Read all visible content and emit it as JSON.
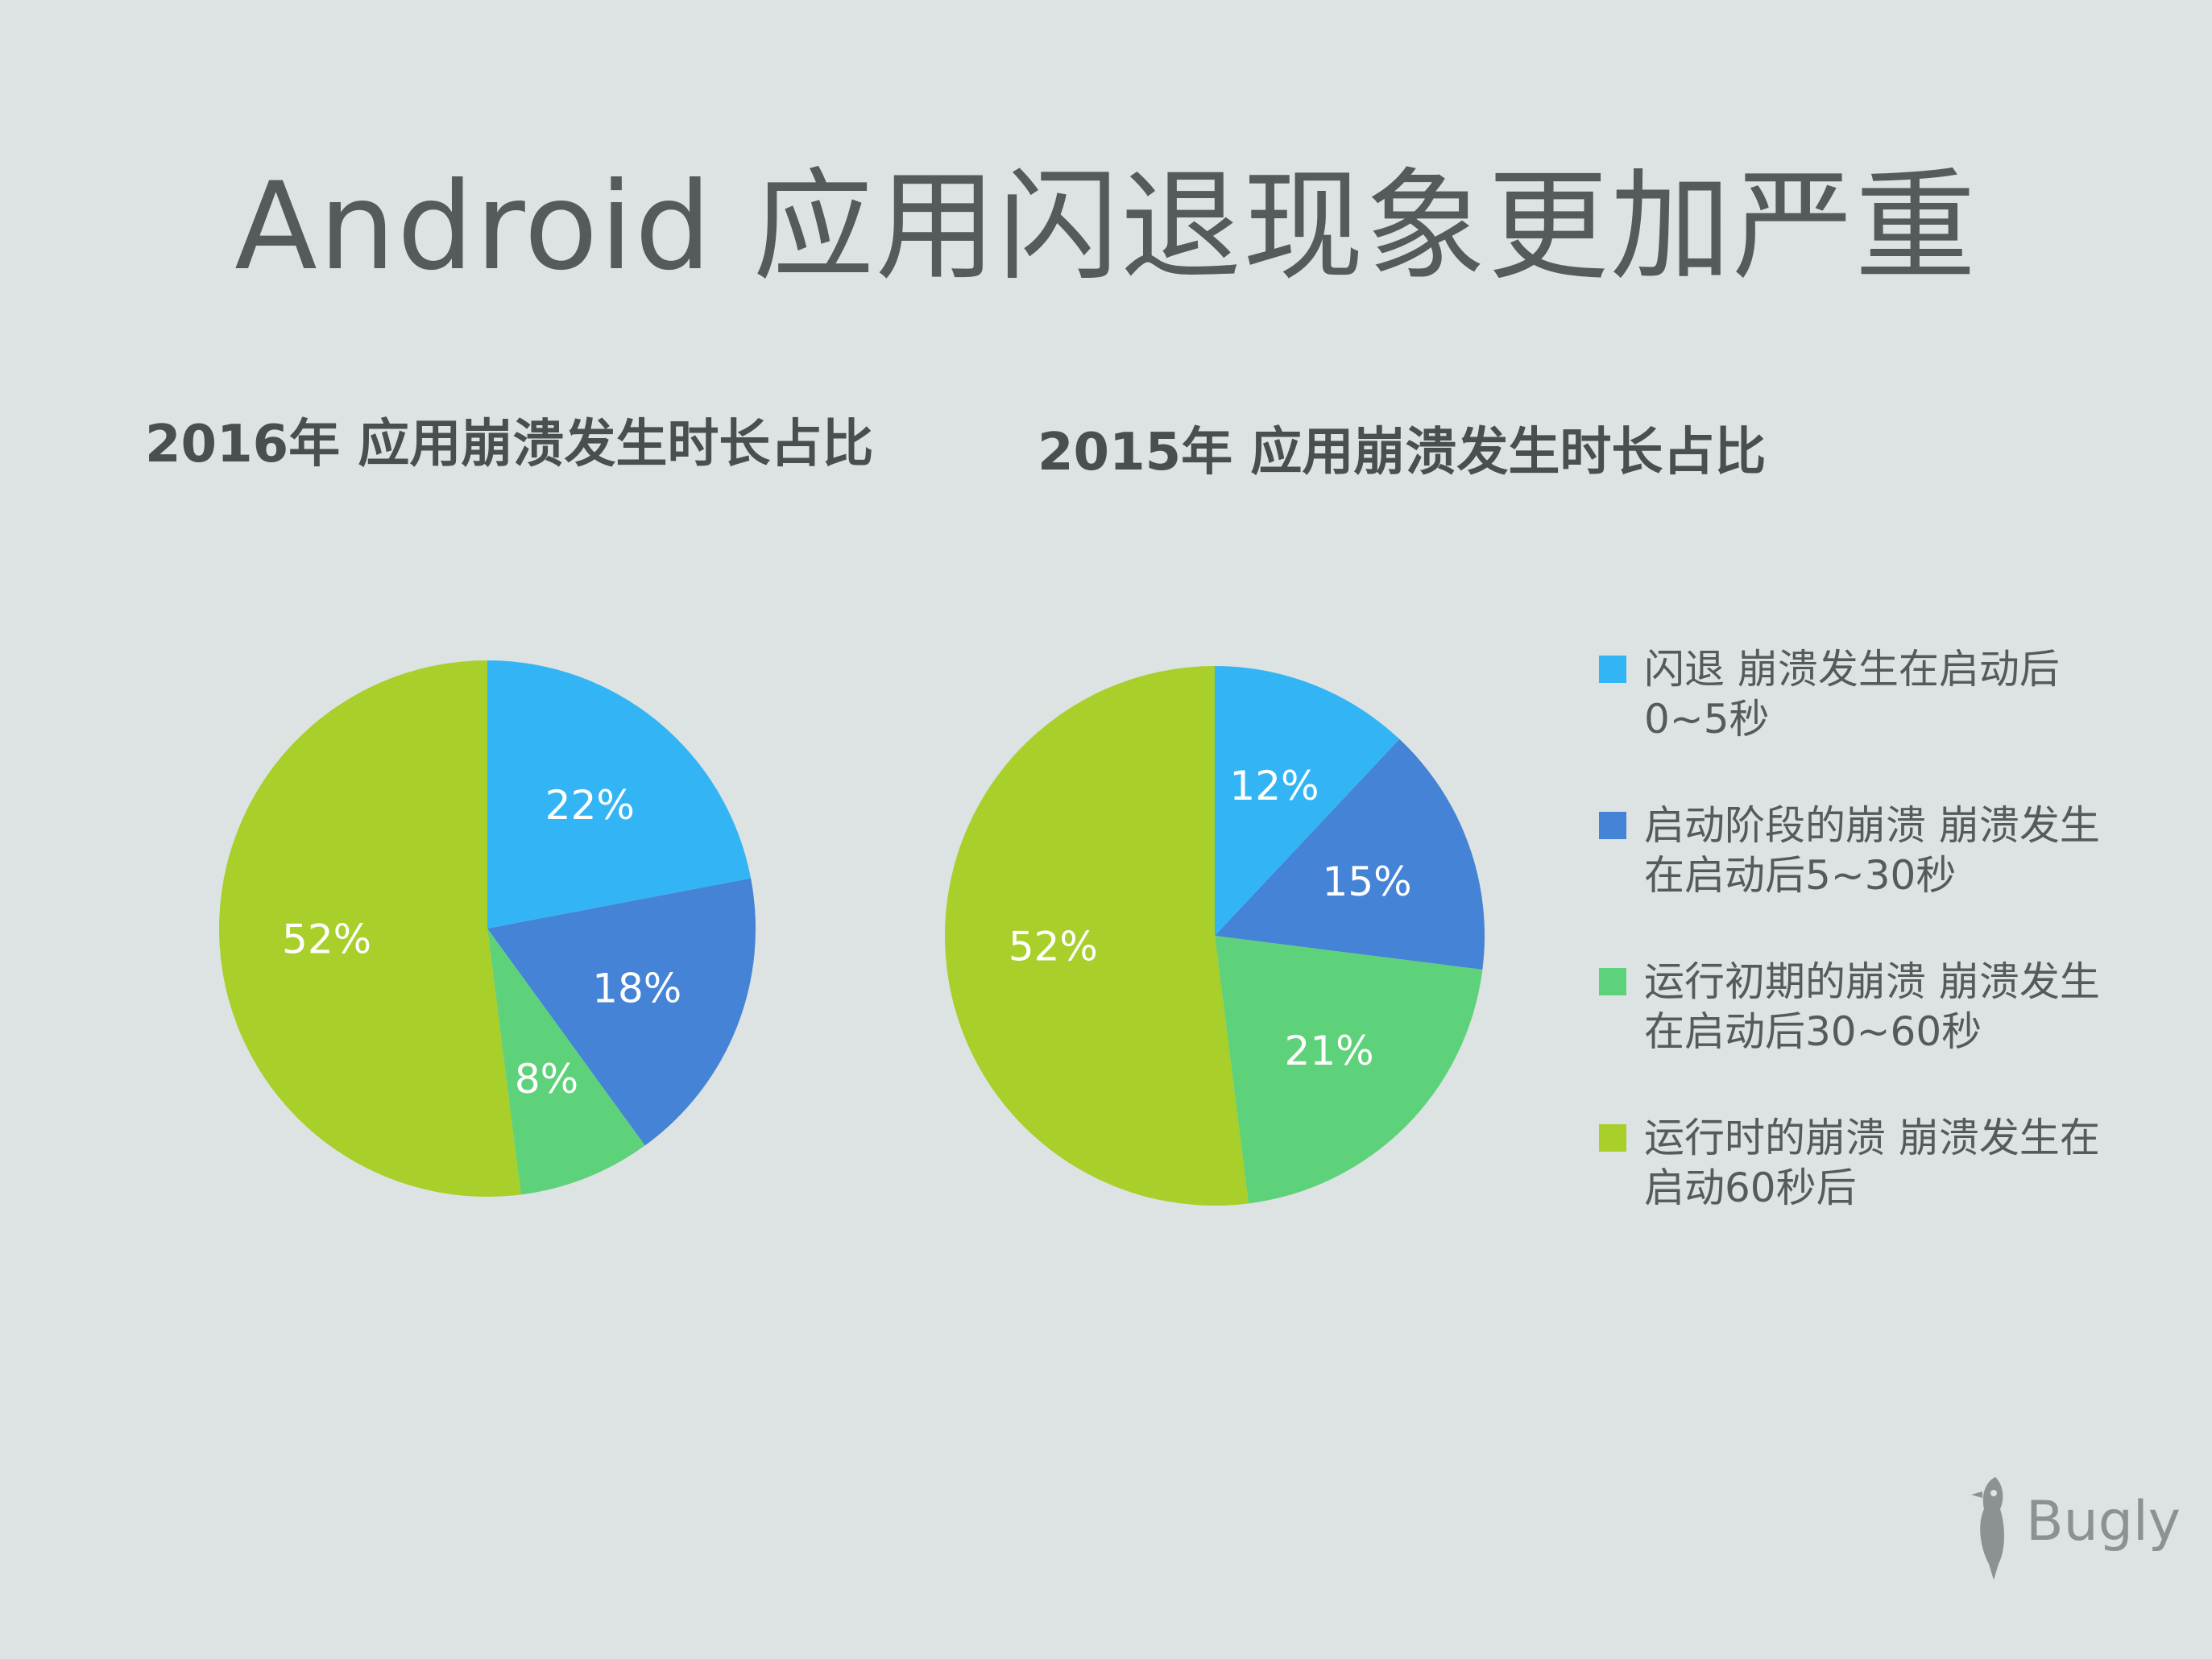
{
  "title": "Android 应用闪退现象更加严重",
  "legend": [
    {
      "label": "闪退 崩溃发生在启动后0~5秒",
      "color": "#33b5f5"
    },
    {
      "label": "启动阶段的崩溃 崩溃发生在启动后5~30秒",
      "color": "#4483d6"
    },
    {
      "label": "运行初期的崩溃 崩溃发生在启动后30~60秒",
      "color": "#5ed27a"
    },
    {
      "label": "运行时的崩溃 崩溃发生在启动60秒后",
      "color": "#a8cf2a"
    }
  ],
  "chart_data": [
    {
      "type": "pie",
      "title": "2016年 应用崩溃发生时长占比",
      "categories": [
        "闪退 崩溃发生在启动后0~5秒",
        "启动阶段的崩溃 崩溃发生在启动后5~30秒",
        "运行初期的崩溃 崩溃发生在启动后30~60秒",
        "运行时的崩溃 崩溃发生在启动60秒后"
      ],
      "values": [
        22,
        18,
        8,
        52
      ],
      "labels": [
        "22%",
        "18%",
        "8%",
        "52%"
      ],
      "colors": [
        "#33b5f5",
        "#4483d6",
        "#5ed27a",
        "#a8cf2a"
      ]
    },
    {
      "type": "pie",
      "title": "2015年 应用崩溃发生时长占比",
      "categories": [
        "闪退 崩溃发生在启动后0~5秒",
        "启动阶段的崩溃 崩溃发生在启动后5~30秒",
        "运行初期的崩溃 崩溃发生在启动后30~60秒",
        "运行时的崩溃 崩溃发生在启动60秒后"
      ],
      "values": [
        12,
        15,
        21,
        52
      ],
      "labels": [
        "12%",
        "15%",
        "21%",
        "52%"
      ],
      "colors": [
        "#33b5f5",
        "#4483d6",
        "#5ed27a",
        "#a8cf2a"
      ]
    }
  ],
  "logo": {
    "text": "Bugly"
  }
}
